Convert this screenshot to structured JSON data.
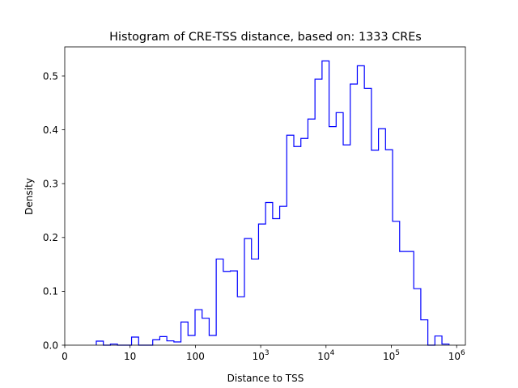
{
  "chart_data": {
    "type": "histogram-step",
    "title": "Histogram of CRE-TSS distance, based on: 1333 CREs",
    "xlabel": "Distance to TSS",
    "ylabel": "Density",
    "xscale": "symlog",
    "xlim_log10": [
      0,
      6.13
    ],
    "ylim": [
      0,
      0.555
    ],
    "bin_edges_log10": {
      "start": 0.483,
      "step": 0.108,
      "count": 50
    },
    "values": [
      0.0075,
      0,
      0.002,
      0,
      0,
      0.015,
      0,
      0,
      0.01,
      0.016,
      0.008,
      0.006,
      0.043,
      0.018,
      0.066,
      0.05,
      0.018,
      0.16,
      0.137,
      0.138,
      0.09,
      0.198,
      0.16,
      0.225,
      0.265,
      0.235,
      0.258,
      0.39,
      0.369,
      0.384,
      0.42,
      0.494,
      0.528,
      0.406,
      0.432,
      0.372,
      0.485,
      0.519,
      0.477,
      0.362,
      0.402,
      0.363,
      0.23,
      0.174,
      0.174,
      0.105,
      0.047,
      0,
      0.017,
      0.002
    ],
    "line_color": "#0000ff",
    "xticks": [
      {
        "pos": 0,
        "base": "0",
        "exp": ""
      },
      {
        "pos": 1,
        "base": "10",
        "exp": ""
      },
      {
        "pos": 2,
        "base": "100",
        "exp": ""
      },
      {
        "pos": 3,
        "base": "10",
        "exp": "3"
      },
      {
        "pos": 4,
        "base": "10",
        "exp": "4"
      },
      {
        "pos": 5,
        "base": "10",
        "exp": "5"
      },
      {
        "pos": 6,
        "base": "10",
        "exp": "6"
      }
    ],
    "yticks": [
      {
        "value": 0,
        "label": "0.0"
      },
      {
        "value": 0.1,
        "label": "0.1"
      },
      {
        "value": 0.2,
        "label": "0.2"
      },
      {
        "value": 0.3,
        "label": "0.3"
      },
      {
        "value": 0.4,
        "label": "0.4"
      },
      {
        "value": 0.5,
        "label": "0.5"
      }
    ],
    "grid": false
  }
}
